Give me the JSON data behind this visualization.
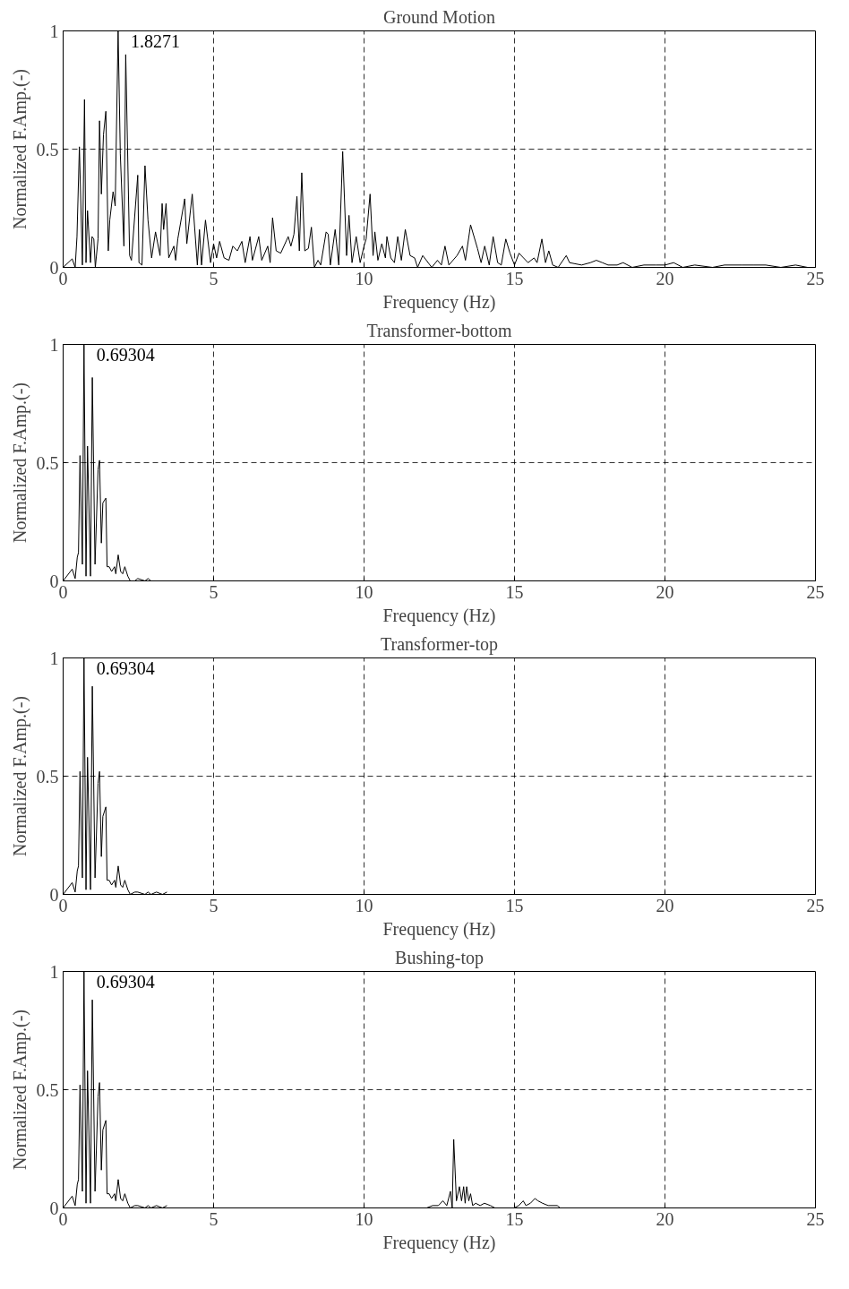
{
  "chart_data": [
    {
      "type": "line",
      "title": "Ground Motion",
      "xlabel": "Frequency (Hz)",
      "ylabel": "Normalized F.Amp.(-)",
      "xlim": [
        0,
        25
      ],
      "ylim": [
        0,
        1
      ],
      "xticks": [
        0,
        5,
        10,
        15,
        20,
        25
      ],
      "yticks": [
        0,
        0.5,
        1
      ],
      "grid": true,
      "line_style": "solid",
      "annotations": [
        "1.8271"
      ],
      "series": [
        {
          "color": "#000000",
          "x": [
            0,
            0.3,
            0.4,
            0.46,
            0.54,
            0.64,
            0.71,
            0.76,
            0.81,
            0.91,
            0.96,
            1.02,
            1.07,
            1.16,
            1.21,
            1.27,
            1.34,
            1.42,
            1.5,
            1.55,
            1.66,
            1.73,
            1.8271,
            1.9,
            2.02,
            2.08,
            2.21,
            2.27,
            2.48,
            2.52,
            2.62,
            2.72,
            2.82,
            2.94,
            3.07,
            3.22,
            3.29,
            3.34,
            3.42,
            3.51,
            3.68,
            3.74,
            3.81,
            4.04,
            4.11,
            4.29,
            4.46,
            4.53,
            4.6,
            4.73,
            4.9,
            5.0,
            5.1,
            5.2,
            5.35,
            5.51,
            5.64,
            5.79,
            5.94,
            6.05,
            6.21,
            6.29,
            6.5,
            6.6,
            6.8,
            6.88,
            6.96,
            7.08,
            7.23,
            7.48,
            7.57,
            7.67,
            7.77,
            7.85,
            7.93,
            8.03,
            8.15,
            8.25,
            8.35,
            8.47,
            8.56,
            8.74,
            8.81,
            8.88,
            9.04,
            9.16,
            9.29,
            9.42,
            9.5,
            9.6,
            9.74,
            9.87,
            10.0,
            10.07,
            10.2,
            10.3,
            10.36,
            10.46,
            10.59,
            10.71,
            10.76,
            10.89,
            11.01,
            11.12,
            11.24,
            11.37,
            11.53,
            11.68,
            11.78,
            11.95,
            12.25,
            12.44,
            12.57,
            12.69,
            12.82,
            13.09,
            13.27,
            13.37,
            13.54,
            13.77,
            13.89,
            14.01,
            14.16,
            14.29,
            14.44,
            14.56,
            14.71,
            14.85,
            15.0,
            15.15,
            15.3,
            15.45,
            15.65,
            15.75,
            15.91,
            16.03,
            16.14,
            16.27,
            16.45,
            16.72,
            16.83,
            17.23,
            17.52,
            17.72,
            17.92,
            18.11,
            18.41,
            18.61,
            18.91,
            19.3,
            19.7,
            20.0,
            20.29,
            20.59,
            20.99,
            21.58,
            21.98,
            22.57,
            22.96,
            23.35,
            23.85,
            24.34,
            24.74
          ],
          "values": [
            0,
            0.036,
            0,
            0.13,
            0.51,
            0.01,
            0.71,
            0.02,
            0.24,
            0.02,
            0.13,
            0.12,
            0,
            0.12,
            0.62,
            0.31,
            0.56,
            0.66,
            0.07,
            0.2,
            0.32,
            0.26,
            1.0,
            0.48,
            0.09,
            0.9,
            0.05,
            0.03,
            0.39,
            0.02,
            0.01,
            0.43,
            0.2,
            0.04,
            0.15,
            0.05,
            0.27,
            0.16,
            0.27,
            0.04,
            0.09,
            0.03,
            0.12,
            0.29,
            0.1,
            0.31,
            0.01,
            0.16,
            0.01,
            0.2,
            0.02,
            0.1,
            0.04,
            0.11,
            0.04,
            0.03,
            0.09,
            0.07,
            0.11,
            0.02,
            0.13,
            0.03,
            0.13,
            0.03,
            0.09,
            0.02,
            0.21,
            0.07,
            0.06,
            0.13,
            0.09,
            0.14,
            0.3,
            0.07,
            0.4,
            0.07,
            0.08,
            0.17,
            0,
            0.03,
            0.01,
            0.15,
            0.14,
            0.01,
            0.16,
            0.01,
            0.49,
            0.05,
            0.22,
            0.02,
            0.13,
            0.02,
            0.09,
            0.12,
            0.31,
            0.05,
            0.15,
            0.03,
            0.1,
            0.04,
            0.13,
            0.04,
            0.02,
            0.13,
            0.03,
            0.16,
            0.05,
            0.04,
            0,
            0.05,
            0,
            0.03,
            0.01,
            0.09,
            0.01,
            0.05,
            0.09,
            0.03,
            0.18,
            0.08,
            0.02,
            0.09,
            0.01,
            0.13,
            0.02,
            0.01,
            0.12,
            0.06,
            0.01,
            0.06,
            0.04,
            0.02,
            0.04,
            0.02,
            0.12,
            0.02,
            0.07,
            0.01,
            0,
            0.05,
            0.02,
            0.01,
            0.02,
            0.03,
            0.02,
            0.01,
            0.01,
            0.02,
            0,
            0.01,
            0.01,
            0.01,
            0.02,
            0,
            0.01,
            0,
            0.01,
            0.01,
            0.01,
            0.01,
            0,
            0.01,
            0
          ]
        }
      ]
    },
    {
      "type": "line",
      "title": "Transformer-bottom",
      "xlabel": "Frequency (Hz)",
      "ylabel": "Normalized F.Amp.(-)",
      "xlim": [
        0,
        25
      ],
      "ylim": [
        0,
        1
      ],
      "xticks": [
        0,
        5,
        10,
        15,
        20,
        25
      ],
      "yticks": [
        0,
        0.5,
        1
      ],
      "grid": true,
      "line_style": "solid",
      "annotations": [
        "0.69304"
      ],
      "series": [
        {
          "color": "#000000",
          "x": [
            0,
            0.3,
            0.4,
            0.47,
            0.51,
            0.56,
            0.64,
            0.69304,
            0.76,
            0.81,
            0.91,
            0.97,
            1.06,
            1.16,
            1.21,
            1.27,
            1.32,
            1.42,
            1.46,
            1.53,
            1.61,
            1.71,
            1.75,
            1.83,
            1.91,
            1.98,
            2.05,
            2.15,
            2.23,
            2.38,
            2.48,
            2.72,
            2.82,
            2.92
          ],
          "values": [
            0,
            0.05,
            0.01,
            0.1,
            0.12,
            0.53,
            0.07,
            1.0,
            0.02,
            0.57,
            0.02,
            0.86,
            0.07,
            0.47,
            0.51,
            0.16,
            0.33,
            0.35,
            0.06,
            0.06,
            0.04,
            0.06,
            0.03,
            0.11,
            0.04,
            0.03,
            0.06,
            0.02,
            0,
            0,
            0.01,
            0,
            0.01,
            0
          ]
        }
      ]
    },
    {
      "type": "line",
      "title": "Transformer-top",
      "xlabel": "Frequency (Hz)",
      "ylabel": "Normalized F.Amp.(-)",
      "xlim": [
        0,
        25
      ],
      "ylim": [
        0,
        1
      ],
      "xticks": [
        0,
        5,
        10,
        15,
        20,
        25
      ],
      "yticks": [
        0,
        0.5,
        1
      ],
      "grid": true,
      "line_style": "solid",
      "annotations": [
        "0.69304"
      ],
      "series": [
        {
          "color": "#000000",
          "x": [
            0,
            0.3,
            0.4,
            0.47,
            0.51,
            0.56,
            0.64,
            0.69304,
            0.76,
            0.81,
            0.91,
            0.97,
            1.06,
            1.16,
            1.21,
            1.27,
            1.32,
            1.42,
            1.46,
            1.53,
            1.61,
            1.71,
            1.75,
            1.83,
            1.91,
            1.98,
            2.05,
            2.15,
            2.23,
            2.38,
            2.48,
            2.72,
            2.82,
            2.92,
            3.1,
            3.3,
            3.45
          ],
          "values": [
            0,
            0.05,
            0.01,
            0.1,
            0.12,
            0.52,
            0.07,
            1.0,
            0.02,
            0.58,
            0.02,
            0.88,
            0.07,
            0.47,
            0.52,
            0.16,
            0.33,
            0.37,
            0.06,
            0.06,
            0.04,
            0.06,
            0.03,
            0.12,
            0.04,
            0.03,
            0.06,
            0.02,
            0,
            0.01,
            0.01,
            0,
            0.01,
            0,
            0.01,
            0,
            0.01
          ]
        }
      ]
    },
    {
      "type": "line",
      "title": "Bushing-top",
      "xlabel": "Frequency (Hz)",
      "ylabel": "Normalized F.Amp.(-)",
      "xlim": [
        0,
        25
      ],
      "ylim": [
        0,
        1
      ],
      "xticks": [
        0,
        5,
        10,
        15,
        20,
        25
      ],
      "yticks": [
        0,
        0.5,
        1
      ],
      "grid": true,
      "line_style": "solid",
      "annotations": [
        "0.69304"
      ],
      "series": [
        {
          "color": "#000000",
          "x": [
            0,
            0.3,
            0.4,
            0.47,
            0.51,
            0.56,
            0.64,
            0.69304,
            0.76,
            0.81,
            0.91,
            0.97,
            1.06,
            1.16,
            1.21,
            1.27,
            1.32,
            1.42,
            1.46,
            1.53,
            1.61,
            1.71,
            1.75,
            1.83,
            1.91,
            1.98,
            2.05,
            2.15,
            2.23,
            2.38,
            2.48,
            2.72,
            2.82,
            2.92,
            3.1,
            3.3,
            3.45,
            3.6,
            12.08,
            12.28,
            12.47,
            12.62,
            12.75,
            12.87,
            12.93,
            12.98,
            13.07,
            13.17,
            13.24,
            13.31,
            13.36,
            13.41,
            13.48,
            13.54,
            13.61,
            13.71,
            13.86,
            14.0,
            14.2,
            14.35,
            14.6,
            14.99,
            15.14,
            15.29,
            15.38,
            15.53,
            15.68,
            15.78,
            15.93,
            16.12,
            16.42,
            16.52
          ],
          "values": [
            0,
            0.05,
            0.01,
            0.1,
            0.12,
            0.52,
            0.07,
            1.0,
            0.02,
            0.58,
            0.02,
            0.88,
            0.07,
            0.47,
            0.53,
            0.16,
            0.33,
            0.37,
            0.06,
            0.06,
            0.04,
            0.06,
            0.03,
            0.12,
            0.04,
            0.03,
            0.06,
            0.02,
            0,
            0.01,
            0.01,
            0,
            0.01,
            0,
            0.01,
            0,
            0.01,
            null,
            0,
            0.01,
            0.01,
            0.03,
            0.01,
            0.07,
            0,
            0.29,
            0.03,
            0.09,
            0.03,
            0.09,
            0.02,
            0.09,
            0.03,
            0.06,
            0.01,
            0.02,
            0.01,
            0.02,
            0.01,
            0,
            null,
            0,
            0.01,
            0.03,
            0.01,
            0.02,
            0.04,
            0.03,
            0.02,
            0.01,
            0.01,
            0
          ]
        }
      ]
    }
  ]
}
